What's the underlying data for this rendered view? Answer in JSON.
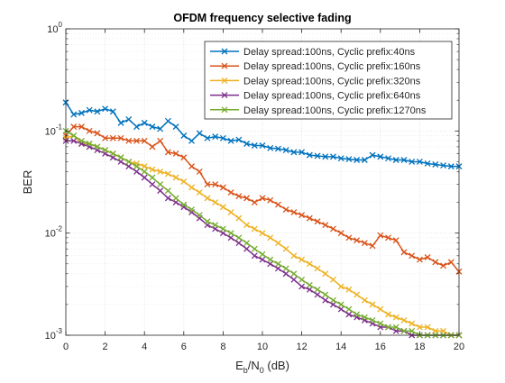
{
  "chart_data": {
    "type": "line",
    "title": "OFDM frequency selective fading",
    "xlabel": {
      "base": "E",
      "sub1": "b",
      "mid": "/N",
      "sub2": "0",
      "tail": " (dB)"
    },
    "ylabel": "BER",
    "xlim": [
      0,
      20
    ],
    "ylim": [
      0.001,
      1
    ],
    "yscale": "log",
    "grid": true,
    "minor_grid": true,
    "legend_position": "top-right",
    "x_ticks": [
      "0",
      "2",
      "4",
      "6",
      "8",
      "10",
      "12",
      "14",
      "16",
      "18",
      "20"
    ],
    "y_ticks": [
      {
        "base": "10",
        "exp": "0"
      },
      {
        "base": "10",
        "exp": "-1"
      },
      {
        "base": "10",
        "exp": "-2"
      },
      {
        "base": "10",
        "exp": "-3"
      }
    ],
    "x": [
      0,
      0.4,
      0.8,
      1.2,
      1.6,
      2.0,
      2.4,
      2.8,
      3.2,
      3.6,
      4.0,
      4.4,
      4.8,
      5.2,
      5.6,
      6.0,
      6.4,
      6.8,
      7.2,
      7.6,
      8.0,
      8.4,
      8.8,
      9.2,
      9.6,
      10.0,
      10.4,
      10.8,
      11.2,
      11.6,
      12.0,
      12.4,
      12.8,
      13.2,
      13.6,
      14.0,
      14.4,
      14.8,
      15.2,
      15.6,
      16.0,
      16.4,
      16.8,
      17.2,
      17.6,
      18.0,
      18.4,
      18.8,
      19.2,
      19.6,
      20.0
    ],
    "series": [
      {
        "name": "Delay spread:100ns, Cyclic prefix:40ns",
        "color": "#0072BD",
        "values": [
          0.19,
          0.145,
          0.15,
          0.16,
          0.155,
          0.165,
          0.155,
          0.12,
          0.13,
          0.11,
          0.12,
          0.11,
          0.105,
          0.125,
          0.11,
          0.09,
          0.08,
          0.095,
          0.085,
          0.088,
          0.085,
          0.08,
          0.082,
          0.075,
          0.072,
          0.072,
          0.068,
          0.067,
          0.065,
          0.062,
          0.062,
          0.058,
          0.057,
          0.056,
          0.056,
          0.054,
          0.053,
          0.052,
          0.052,
          0.058,
          0.056,
          0.054,
          0.052,
          0.052,
          0.05,
          0.05,
          0.048,
          0.047,
          0.046,
          0.045,
          0.045
        ]
      },
      {
        "name": "Delay spread:100ns, Cyclic prefix:160ns",
        "color": "#D95319",
        "values": [
          0.09,
          0.11,
          0.11,
          0.1,
          0.095,
          0.085,
          0.085,
          0.085,
          0.08,
          0.08,
          0.08,
          0.07,
          0.08,
          0.062,
          0.06,
          0.055,
          0.045,
          0.04,
          0.03,
          0.03,
          0.028,
          0.025,
          0.023,
          0.022,
          0.02,
          0.022,
          0.021,
          0.019,
          0.017,
          0.016,
          0.015,
          0.014,
          0.013,
          0.012,
          0.011,
          0.01,
          0.009,
          0.0085,
          0.008,
          0.0075,
          0.0095,
          0.009,
          0.0085,
          0.0065,
          0.006,
          0.0055,
          0.0058,
          0.0052,
          0.0048,
          0.0052,
          0.0042
        ]
      },
      {
        "name": "Delay spread:100ns, Cyclic prefix:320ns",
        "color": "#EDB120",
        "values": [
          0.085,
          0.09,
          0.075,
          0.075,
          0.07,
          0.065,
          0.06,
          0.055,
          0.05,
          0.048,
          0.045,
          0.042,
          0.04,
          0.038,
          0.035,
          0.032,
          0.028,
          0.025,
          0.022,
          0.02,
          0.018,
          0.016,
          0.014,
          0.012,
          0.011,
          0.01,
          0.009,
          0.008,
          0.007,
          0.006,
          0.0055,
          0.005,
          0.0045,
          0.004,
          0.0035,
          0.003,
          0.0028,
          0.0025,
          0.0022,
          0.002,
          0.0018,
          0.0016,
          0.0015,
          0.0014,
          0.0013,
          0.0012,
          0.0012,
          0.0011,
          0.0011,
          0.001,
          0.001
        ]
      },
      {
        "name": "Delay spread:100ns, Cyclic prefix:640ns",
        "color": "#7E2F8E",
        "values": [
          0.08,
          0.08,
          0.075,
          0.07,
          0.065,
          0.06,
          0.055,
          0.05,
          0.045,
          0.04,
          0.035,
          0.03,
          0.026,
          0.022,
          0.02,
          0.018,
          0.016,
          0.014,
          0.012,
          0.011,
          0.01,
          0.009,
          0.008,
          0.007,
          0.006,
          0.0055,
          0.005,
          0.0045,
          0.004,
          0.0035,
          0.003,
          0.0028,
          0.0025,
          0.0022,
          0.002,
          0.0018,
          0.0016,
          0.0015,
          0.0014,
          0.0013,
          0.0012,
          0.0012,
          0.0011,
          0.0011,
          0.001,
          0.001,
          0.001,
          0.001,
          0.001,
          0.001,
          0.001
        ]
      },
      {
        "name": "Delay spread:100ns, Cyclic prefix:1270ns",
        "color": "#77AC30",
        "values": [
          0.1,
          0.09,
          0.08,
          0.075,
          0.07,
          0.065,
          0.06,
          0.055,
          0.05,
          0.045,
          0.04,
          0.035,
          0.03,
          0.026,
          0.022,
          0.019,
          0.017,
          0.015,
          0.013,
          0.012,
          0.011,
          0.01,
          0.009,
          0.008,
          0.007,
          0.0062,
          0.0055,
          0.005,
          0.0045,
          0.004,
          0.0035,
          0.0031,
          0.0028,
          0.0025,
          0.0022,
          0.002,
          0.0018,
          0.0016,
          0.0015,
          0.0014,
          0.0013,
          0.0012,
          0.0012,
          0.0011,
          0.0011,
          0.001,
          0.001,
          0.001,
          0.001,
          0.001,
          0.001
        ]
      }
    ]
  }
}
